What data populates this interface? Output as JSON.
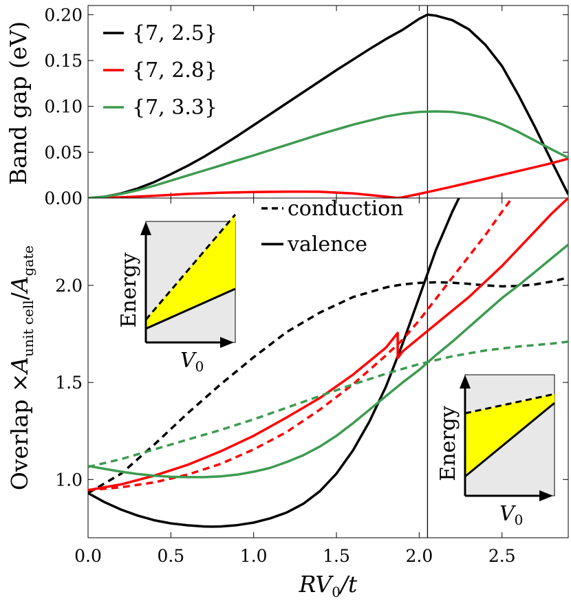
{
  "chart_data": [
    {
      "id": "top",
      "type": "line",
      "xlabel": "",
      "ylabel": "Band gap (eV)",
      "xlim": [
        0,
        2.9
      ],
      "ylim": [
        0,
        0.21
      ],
      "xticks": [
        0,
        0.5,
        1.0,
        1.5,
        2.0,
        2.5
      ],
      "yticks": [
        0.0,
        0.05,
        0.1,
        0.15,
        0.2
      ],
      "ytick_labels": [
        "0.00",
        "0.05",
        "0.10",
        "0.15",
        "0.20"
      ],
      "vline_x": 2.05,
      "legend": {
        "placement": "top-left"
      },
      "series": [
        {
          "name": "{7, 2.5}",
          "color": "#000000",
          "x": [
            0,
            0.1,
            0.2,
            0.3,
            0.4,
            0.5,
            0.6,
            0.7,
            0.8,
            0.9,
            1.0,
            1.1,
            1.2,
            1.3,
            1.4,
            1.5,
            1.6,
            1.7,
            1.8,
            1.9,
            2.0,
            2.05,
            2.1,
            2.2,
            2.3,
            2.4,
            2.5,
            2.6,
            2.7,
            2.8,
            2.9
          ],
          "y": [
            0,
            0.0015,
            0.005,
            0.0105,
            0.0175,
            0.026,
            0.035,
            0.045,
            0.056,
            0.0675,
            0.0795,
            0.0915,
            0.1035,
            0.1155,
            0.1275,
            0.1395,
            0.151,
            0.1625,
            0.1735,
            0.1835,
            0.1955,
            0.2,
            0.199,
            0.194,
            0.184,
            0.167,
            0.144,
            0.112,
            0.077,
            0.04,
            0.004
          ]
        },
        {
          "name": "{7, 2.8}",
          "color": "#ff0000",
          "x": [
            0,
            0.2,
            0.4,
            0.6,
            0.8,
            1.0,
            1.2,
            1.3,
            1.4,
            1.6,
            1.8,
            1.87,
            1.9,
            2.0,
            2.1,
            2.2,
            2.4,
            2.6,
            2.8,
            2.9
          ],
          "y": [
            0,
            0.0008,
            0.0025,
            0.0045,
            0.0058,
            0.0065,
            0.0069,
            0.007,
            0.0068,
            0.005,
            0.0015,
            0,
            0.0008,
            0.0045,
            0.0085,
            0.0125,
            0.021,
            0.0295,
            0.038,
            0.043
          ]
        },
        {
          "name": "{7, 3.3}",
          "color": "#3d9b50",
          "x": [
            0,
            0.1,
            0.2,
            0.3,
            0.4,
            0.5,
            0.6,
            0.7,
            0.8,
            0.9,
            1.0,
            1.2,
            1.4,
            1.6,
            1.8,
            1.9,
            2.0,
            2.1,
            2.2,
            2.3,
            2.4,
            2.5,
            2.6,
            2.7,
            2.8,
            2.9
          ],
          "y": [
            0,
            0.0015,
            0.0045,
            0.0085,
            0.0135,
            0.019,
            0.0245,
            0.03,
            0.0355,
            0.041,
            0.0465,
            0.058,
            0.0695,
            0.08,
            0.089,
            0.092,
            0.094,
            0.0945,
            0.094,
            0.0915,
            0.087,
            0.0805,
            0.072,
            0.0625,
            0.053,
            0.044
          ]
        }
      ]
    },
    {
      "id": "bottom",
      "type": "line",
      "xlabel": "RV0/t",
      "ylabel": "Overlap ×A unit cell/A gate",
      "xlim": [
        0,
        2.9
      ],
      "ylim": [
        0.7,
        2.45
      ],
      "xticks": [
        0,
        0.5,
        1.0,
        1.5,
        2.0,
        2.5
      ],
      "xtick_labels": [
        "0.0",
        "0.5",
        "1.0",
        "1.5",
        "2.0",
        "2.5"
      ],
      "yticks": [
        1.0,
        1.5,
        2.0
      ],
      "ytick_labels": [
        "1.0",
        "1.5",
        "2.0"
      ],
      "vline_x": 2.05,
      "legend": {
        "placement": "top-center",
        "entries": [
          {
            "label": "conduction",
            "dash": "dashed"
          },
          {
            "label": "valence",
            "dash": "solid"
          }
        ]
      },
      "series": [
        {
          "group": "{7, 2.5}",
          "band": "conduction",
          "color": "#000000",
          "x": [
            0,
            0.2,
            0.4,
            0.6,
            0.8,
            1.0,
            1.2,
            1.4,
            1.6,
            1.8,
            1.9,
            2.0,
            2.1,
            2.2,
            2.3,
            2.4,
            2.5,
            2.6,
            2.7,
            2.8,
            2.9
          ],
          "y": [
            0.93,
            1.03,
            1.18,
            1.34,
            1.49,
            1.63,
            1.76,
            1.86,
            1.94,
            1.99,
            2.005,
            2.013,
            2.016,
            2.014,
            2.008,
            2.0,
            1.995,
            1.997,
            2.005,
            2.02,
            2.04
          ]
        },
        {
          "group": "{7, 2.5}",
          "band": "valence",
          "color": "#000000",
          "x": [
            0,
            0.1,
            0.2,
            0.3,
            0.4,
            0.5,
            0.6,
            0.7,
            0.75,
            0.8,
            0.9,
            1.0,
            1.1,
            1.2,
            1.3,
            1.4,
            1.5,
            1.6,
            1.7,
            1.8,
            1.9,
            2.0,
            2.1,
            2.2,
            2.24
          ],
          "y": [
            0.93,
            0.883,
            0.845,
            0.814,
            0.79,
            0.774,
            0.764,
            0.758,
            0.757,
            0.758,
            0.765,
            0.778,
            0.8,
            0.83,
            0.875,
            0.94,
            1.03,
            1.15,
            1.3,
            1.48,
            1.7,
            1.94,
            2.18,
            2.38,
            2.45
          ]
        },
        {
          "group": "{7, 2.8}",
          "band": "conduction",
          "color": "#ff0000",
          "x": [
            0,
            0.2,
            0.4,
            0.6,
            0.8,
            1.0,
            1.2,
            1.4,
            1.6,
            1.8,
            1.9,
            2.0,
            2.1,
            2.2,
            2.3,
            2.4,
            2.5,
            2.56
          ],
          "y": [
            0.945,
            0.96,
            0.985,
            1.025,
            1.08,
            1.155,
            1.245,
            1.36,
            1.49,
            1.64,
            1.72,
            1.82,
            1.93,
            2.04,
            2.15,
            2.26,
            2.38,
            2.45
          ]
        },
        {
          "group": "{7, 2.8}",
          "band": "valence",
          "color": "#ff0000",
          "x": [
            0,
            0.2,
            0.4,
            0.6,
            0.8,
            1.0,
            1.2,
            1.4,
            1.6,
            1.8,
            1.87,
            1.87,
            1.9,
            2.0,
            2.1,
            2.2,
            2.3,
            2.4,
            2.5,
            2.6,
            2.7,
            2.8,
            2.9
          ],
          "y": [
            0.945,
            0.975,
            1.02,
            1.075,
            1.145,
            1.225,
            1.32,
            1.42,
            1.54,
            1.68,
            1.755,
            1.625,
            1.66,
            1.73,
            1.8,
            1.87,
            1.94,
            2.02,
            2.1,
            2.19,
            2.28,
            2.37,
            2.45
          ]
        },
        {
          "group": "{7, 3.3}",
          "band": "conduction",
          "color": "#3d9b50",
          "x": [
            0,
            0.2,
            0.4,
            0.6,
            0.8,
            1.0,
            1.2,
            1.4,
            1.6,
            1.8,
            2.0,
            2.2,
            2.4,
            2.6,
            2.8,
            2.9
          ],
          "y": [
            1.065,
            1.105,
            1.155,
            1.205,
            1.255,
            1.31,
            1.37,
            1.43,
            1.49,
            1.545,
            1.595,
            1.635,
            1.665,
            1.685,
            1.7,
            1.71
          ]
        },
        {
          "group": "{7, 3.3}",
          "band": "valence",
          "color": "#3d9b50",
          "x": [
            0,
            0.1,
            0.2,
            0.3,
            0.4,
            0.5,
            0.6,
            0.7,
            0.8,
            0.9,
            1.0,
            1.1,
            1.2,
            1.3,
            1.4,
            1.5,
            1.6,
            1.7,
            1.8,
            1.9,
            2.0,
            2.1,
            2.2,
            2.3,
            2.4,
            2.5,
            2.6,
            2.7,
            2.8,
            2.9
          ],
          "y": [
            1.07,
            1.055,
            1.04,
            1.028,
            1.02,
            1.014,
            1.012,
            1.012,
            1.016,
            1.025,
            1.04,
            1.06,
            1.09,
            1.125,
            1.17,
            1.225,
            1.29,
            1.36,
            1.43,
            1.5,
            1.565,
            1.64,
            1.71,
            1.785,
            1.86,
            1.935,
            2.0,
            2.07,
            2.14,
            2.21
          ]
        }
      ]
    }
  ],
  "insets": {
    "left": {
      "ylabel": "Energy",
      "xlabel": "V0"
    },
    "right": {
      "ylabel": "Energy",
      "xlabel": "V0"
    }
  },
  "colors": {
    "fill": "#ffff00",
    "panel": "#e8e8e8"
  }
}
